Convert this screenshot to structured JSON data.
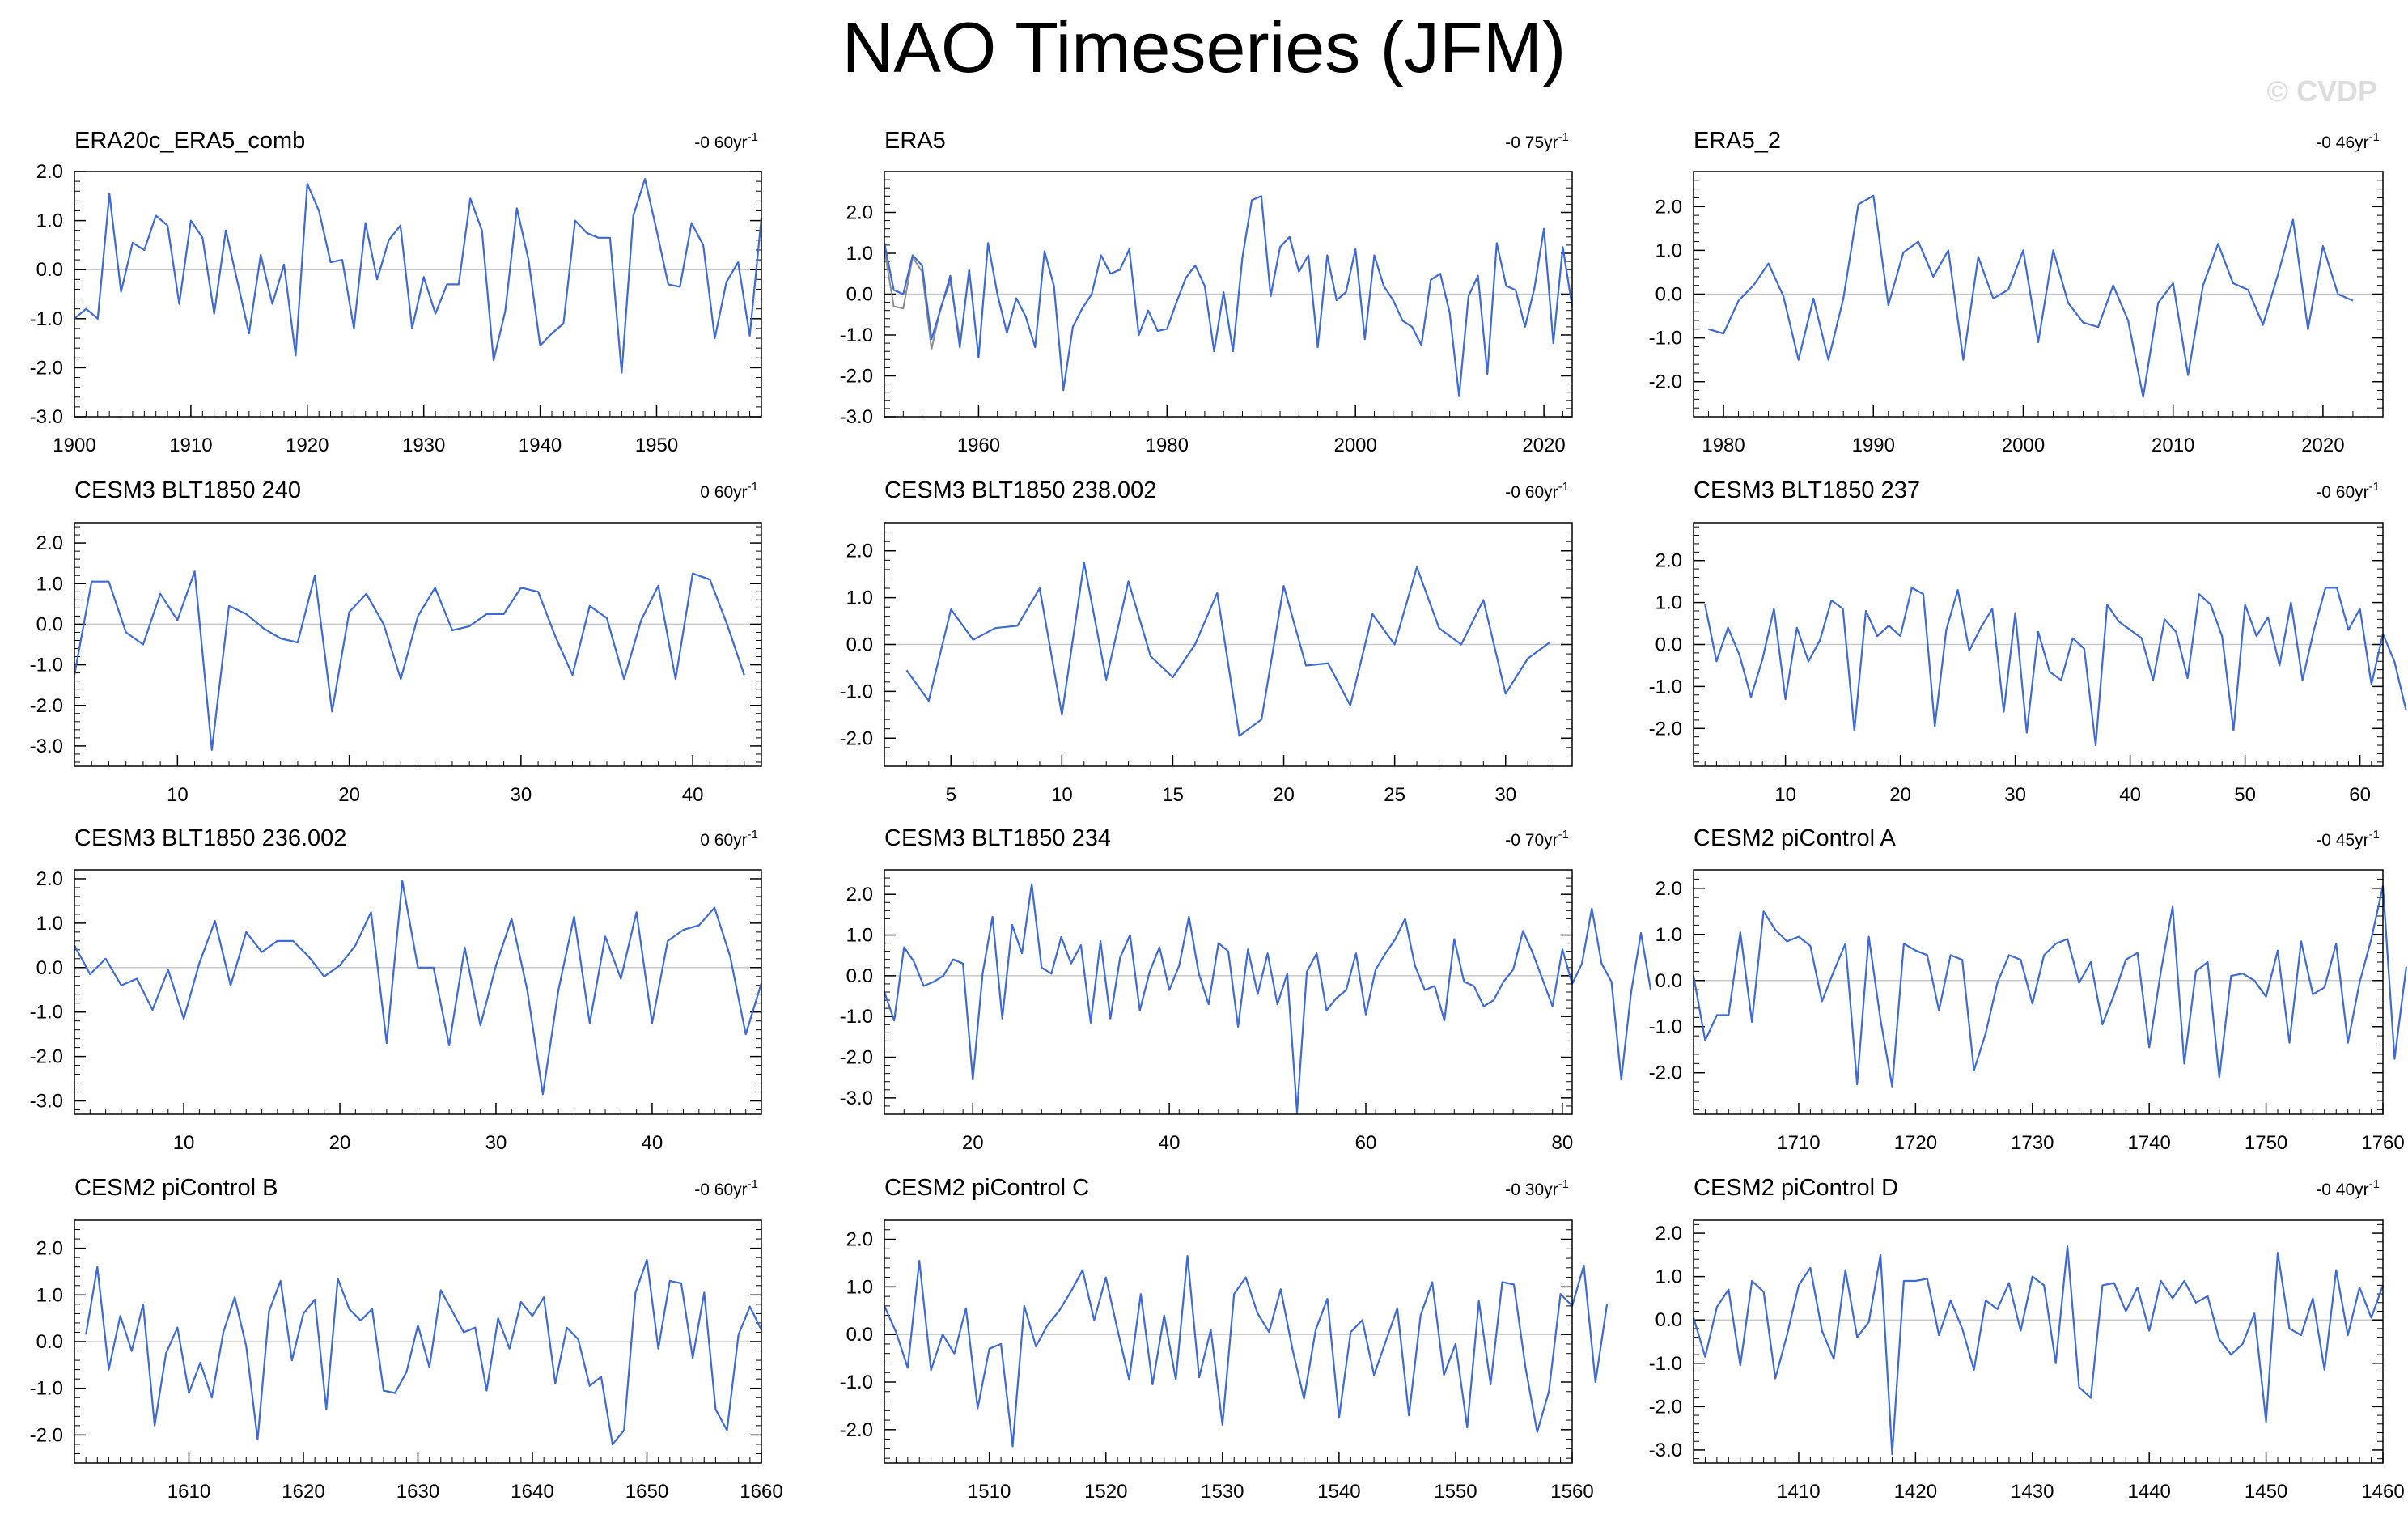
{
  "title": "NAO Timeseries (JFM)",
  "watermark": "© CVDP",
  "chart_data": [
    {
      "type": "line",
      "title": "ERA20c_ERA5_comb",
      "trend": "-0 60yr",
      "trend_sup": "-1",
      "x_start": 1900,
      "xlim": [
        1900,
        1959
      ],
      "ylim": [
        -3.0,
        2.0
      ],
      "yticks": [
        2.0,
        1.0,
        0.0,
        -1.0,
        -2.0,
        -3.0
      ],
      "xticks": [
        1900,
        1910,
        1920,
        1930,
        1940,
        1950
      ],
      "values": [
        -1.0,
        -0.8,
        -1.0,
        1.55,
        -0.45,
        0.55,
        0.4,
        1.1,
        0.9,
        -0.7,
        1.0,
        0.65,
        -0.9,
        0.8,
        -0.25,
        -1.3,
        0.3,
        -0.7,
        0.1,
        -1.75,
        1.75,
        1.2,
        0.15,
        0.2,
        -1.2,
        0.95,
        -0.2,
        0.6,
        0.9,
        -1.2,
        -0.15,
        -0.9,
        -0.3,
        -0.3,
        1.45,
        0.8,
        -1.85,
        -0.85,
        1.25,
        0.2,
        -1.55,
        -1.3,
        -1.1,
        1.0,
        0.75,
        0.65,
        0.65,
        -2.1,
        1.1,
        1.85,
        0.8,
        -0.3,
        -0.35,
        0.95,
        0.5,
        -1.4,
        -0.25,
        0.15,
        -1.35,
        1.05
      ]
    },
    {
      "type": "line",
      "title": "ERA5",
      "trend": "-0 75yr",
      "trend_sup": "-1",
      "x_start": 1950,
      "xlim": [
        1950,
        2023
      ],
      "ylim": [
        -3.0,
        3.0
      ],
      "yticks": [
        2.0,
        1.0,
        0.0,
        -1.0,
        -2.0,
        -3.0
      ],
      "xticks": [
        1960,
        1980,
        2000,
        2020
      ],
      "values": [
        1.25,
        0.1,
        0.0,
        0.95,
        0.7,
        -1.1,
        -0.35,
        0.45,
        -1.3,
        0.6,
        -1.55,
        1.25,
        0.0,
        -0.95,
        -0.1,
        -0.55,
        -1.3,
        1.05,
        0.2,
        -2.35,
        -0.8,
        -0.35,
        0.0,
        0.95,
        0.5,
        0.6,
        1.1,
        -1.0,
        -0.4,
        -0.9,
        -0.85,
        -0.2,
        0.4,
        0.7,
        0.2,
        -1.4,
        0.05,
        -1.4,
        0.9,
        2.3,
        2.4,
        -0.05,
        1.15,
        1.4,
        0.55,
        0.95,
        -1.3,
        0.95,
        -0.15,
        0.05,
        1.1,
        -1.1,
        0.95,
        0.2,
        -0.15,
        -0.65,
        -0.8,
        -1.25,
        0.35,
        0.5,
        -0.45,
        -2.5,
        -0.05,
        0.45,
        -1.95,
        1.25,
        0.2,
        0.1,
        -0.8,
        0.15,
        1.6,
        -1.2,
        1.15,
        -0.3
      ],
      "grey": [
        1.1,
        -0.3,
        -0.35,
        0.9,
        0.55,
        -1.35,
        -0.3,
        0.3,
        -1.1
      ]
    },
    {
      "type": "line",
      "title": "ERA5_2",
      "trend": "-0 46yr",
      "trend_sup": "-1",
      "x_start": 1979,
      "xlim": [
        1978,
        2024
      ],
      "ylim": [
        -2.8,
        2.8
      ],
      "yticks": [
        2.0,
        1.0,
        0.0,
        -1.0,
        -2.0
      ],
      "xticks": [
        1980,
        1990,
        2000,
        2010,
        2020
      ],
      "values": [
        -0.8,
        -0.9,
        -0.15,
        0.2,
        0.7,
        -0.05,
        -1.5,
        -0.1,
        -1.5,
        -0.1,
        2.05,
        2.25,
        -0.25,
        0.95,
        1.2,
        0.4,
        1.0,
        -1.5,
        0.85,
        -0.1,
        0.1,
        1.0,
        -1.1,
        1.0,
        -0.2,
        -0.65,
        -0.75,
        0.2,
        -0.6,
        -2.35,
        -0.2,
        0.25,
        -1.85,
        0.2,
        1.15,
        0.25,
        0.1,
        -0.7,
        0.45,
        1.7,
        -0.8,
        1.1,
        0.0,
        -0.15
      ]
    },
    {
      "type": "line",
      "title": "CESM3 BLT1850 240",
      "trend": "0 60yr",
      "trend_sup": "-1",
      "x_start": 4,
      "xlim": [
        4,
        44
      ],
      "ylim": [
        -3.5,
        2.5
      ],
      "yticks": [
        2.0,
        1.0,
        0.0,
        -1.0,
        -2.0,
        -3.0
      ],
      "xticks": [
        10,
        20,
        30,
        40
      ],
      "values": [
        -1.25,
        1.05,
        1.05,
        -0.2,
        -0.5,
        0.75,
        0.1,
        1.3,
        -3.1,
        0.45,
        0.25,
        -0.1,
        -0.35,
        -0.45,
        1.2,
        -2.15,
        0.3,
        0.75,
        0.0,
        -1.35,
        0.2,
        0.9,
        -0.15,
        -0.05,
        0.25,
        0.25,
        0.9,
        0.8,
        -0.3,
        -1.25,
        0.45,
        0.15,
        -1.35,
        0.1,
        0.95,
        -1.35,
        1.25,
        1.1,
        0.0,
        -1.25
      ]
    },
    {
      "type": "line",
      "title": "CESM3 BLT1850 238.002",
      "trend": "-0 60yr",
      "trend_sup": "-1",
      "x_start": 3,
      "xlim": [
        2,
        33
      ],
      "ylim": [
        -2.6,
        2.6
      ],
      "yticks": [
        2.0,
        1.0,
        0.0,
        -1.0,
        -2.0
      ],
      "xticks": [
        5,
        10,
        15,
        20,
        25,
        30
      ],
      "values": [
        -0.55,
        -1.2,
        0.75,
        0.1,
        0.35,
        0.4,
        1.2,
        -1.5,
        1.75,
        -0.75,
        1.35,
        -0.25,
        -0.7,
        0.0,
        1.1,
        -1.95,
        -1.6,
        1.25,
        -0.45,
        -0.4,
        -1.3,
        0.65,
        0.0,
        1.65,
        0.35,
        0.0,
        0.95,
        -1.05,
        -0.3,
        0.05
      ]
    },
    {
      "type": "line",
      "title": "CESM3 BLT1850 237",
      "trend": "-0 60yr",
      "trend_sup": "-1",
      "x_start": 3,
      "xlim": [
        2,
        62
      ],
      "ylim": [
        -2.9,
        2.9
      ],
      "yticks": [
        2.0,
        1.0,
        0.0,
        -1.0,
        -2.0
      ],
      "xticks": [
        10,
        20,
        30,
        40,
        50,
        60
      ],
      "values": [
        0.95,
        -0.4,
        0.4,
        -0.25,
        -1.25,
        -0.35,
        0.85,
        -1.3,
        0.4,
        -0.4,
        0.1,
        1.05,
        0.85,
        -2.05,
        0.8,
        0.2,
        0.45,
        0.2,
        1.35,
        1.2,
        -1.95,
        0.35,
        1.3,
        -0.15,
        0.4,
        0.85,
        -1.6,
        0.75,
        -2.1,
        0.3,
        -0.65,
        -0.85,
        0.15,
        -0.1,
        -2.4,
        0.95,
        0.55,
        0.35,
        0.15,
        -0.85,
        0.6,
        0.3,
        -0.8,
        1.2,
        0.95,
        0.2,
        -2.05,
        0.95,
        0.2,
        0.65,
        -0.5,
        1.0,
        -0.85,
        0.35,
        1.35,
        1.35,
        0.35,
        0.85,
        -0.95,
        0.25,
        -0.4,
        -1.55
      ]
    },
    {
      "type": "line",
      "title": "CESM3 BLT1850 236.002",
      "trend": "0 60yr",
      "trend_sup": "-1",
      "x_start": 3,
      "xlim": [
        3,
        47
      ],
      "ylim": [
        -3.3,
        2.2
      ],
      "yticks": [
        2.0,
        1.0,
        0.0,
        -1.0,
        -2.0,
        -3.0
      ],
      "xticks": [
        10,
        20,
        30,
        40
      ],
      "values": [
        0.5,
        -0.15,
        0.2,
        -0.4,
        -0.25,
        -0.95,
        -0.05,
        -1.15,
        0.1,
        1.05,
        -0.4,
        0.8,
        0.35,
        0.6,
        0.6,
        0.25,
        -0.2,
        0.05,
        0.5,
        1.25,
        -1.7,
        1.95,
        0.0,
        0.0,
        -1.75,
        0.45,
        -1.3,
        0.05,
        1.1,
        -0.5,
        -2.85,
        -0.5,
        1.15,
        -1.25,
        0.7,
        -0.25,
        1.25,
        -1.25,
        0.6,
        0.85,
        0.95,
        1.35,
        0.25,
        -1.5,
        -0.35
      ]
    },
    {
      "type": "line",
      "title": "CESM3 BLT1850 234",
      "trend": "-0 70yr",
      "trend_sup": "-1",
      "x_start": 11,
      "xlim": [
        11,
        81
      ],
      "ylim": [
        -3.4,
        2.6
      ],
      "yticks": [
        2.0,
        1.0,
        0.0,
        -1.0,
        -2.0,
        -3.0
      ],
      "xticks": [
        20,
        40,
        60,
        80
      ],
      "values": [
        -0.4,
        -1.1,
        0.7,
        0.35,
        -0.25,
        -0.15,
        0.0,
        0.4,
        0.3,
        -2.55,
        0.05,
        1.45,
        -1.05,
        1.25,
        0.55,
        2.25,
        0.2,
        0.05,
        0.95,
        0.3,
        0.75,
        -1.15,
        0.85,
        -1.05,
        0.45,
        1.0,
        -0.85,
        0.1,
        0.7,
        -0.35,
        0.25,
        1.45,
        0.05,
        -0.7,
        0.8,
        0.6,
        -1.25,
        0.65,
        -0.45,
        0.55,
        -0.7,
        0.05,
        -3.35,
        0.1,
        0.55,
        -0.85,
        -0.55,
        -0.35,
        0.55,
        -0.95,
        0.15,
        0.55,
        0.9,
        1.4,
        0.25,
        -0.35,
        -0.25,
        -1.1,
        0.9,
        -0.15,
        -0.25,
        -0.75,
        -0.6,
        -0.15,
        0.15,
        1.1,
        0.55,
        -0.1,
        -0.75,
        0.65,
        -0.2,
        0.3,
        1.65,
        0.3,
        -0.15,
        -2.55,
        -0.4,
        1.05,
        -0.35
      ]
    },
    {
      "type": "line",
      "title": "CESM2 piControl A",
      "trend": "-0 45yr",
      "trend_sup": "-1",
      "x_start": 1701,
      "xlim": [
        1701,
        1760
      ],
      "ylim": [
        -2.9,
        2.4
      ],
      "yticks": [
        2.0,
        1.0,
        0.0,
        -1.0,
        -2.0
      ],
      "xticks": [
        1710,
        1720,
        1730,
        1740,
        1750,
        1760
      ],
      "values": [
        0.1,
        -1.3,
        -0.75,
        -0.75,
        1.05,
        -0.9,
        1.5,
        1.1,
        0.85,
        0.95,
        0.75,
        -0.45,
        0.2,
        0.8,
        -2.25,
        0.95,
        -0.85,
        -2.3,
        0.8,
        0.65,
        0.55,
        -0.65,
        0.55,
        0.45,
        -1.95,
        -1.15,
        -0.05,
        0.55,
        0.45,
        -0.5,
        0.55,
        0.8,
        0.9,
        -0.05,
        0.4,
        -0.95,
        -0.3,
        0.45,
        0.6,
        -1.45,
        0.2,
        1.6,
        -1.8,
        0.2,
        0.4,
        -2.1,
        0.1,
        0.15,
        0.0,
        -0.35,
        0.65,
        -1.35,
        0.85,
        -0.3,
        -0.15,
        0.8,
        -1.35,
        -0.05,
        0.9,
        2.05,
        -1.7,
        0.3
      ]
    },
    {
      "type": "line",
      "title": "CESM2 piControl B",
      "trend": "-0 60yr",
      "trend_sup": "-1",
      "x_start": 1601,
      "xlim": [
        1600,
        1660
      ],
      "ylim": [
        -2.6,
        2.6
      ],
      "yticks": [
        2.0,
        1.0,
        0.0,
        -1.0,
        -2.0
      ],
      "xticks": [
        1610,
        1620,
        1630,
        1640,
        1650,
        1660
      ],
      "values": [
        0.15,
        1.6,
        -0.6,
        0.55,
        -0.2,
        0.8,
        -1.8,
        -0.25,
        0.3,
        -1.1,
        -0.45,
        -1.2,
        0.2,
        0.95,
        -0.1,
        -2.1,
        0.65,
        1.3,
        -0.4,
        0.6,
        0.9,
        -1.45,
        1.35,
        0.7,
        0.45,
        0.7,
        -1.05,
        -1.1,
        -0.65,
        0.35,
        -0.55,
        1.1,
        0.65,
        0.2,
        0.3,
        -1.05,
        0.5,
        -0.15,
        0.85,
        0.55,
        0.95,
        -0.9,
        0.3,
        0.05,
        -0.95,
        -0.75,
        -2.2,
        -1.9,
        1.05,
        1.75,
        -0.15,
        1.3,
        1.25,
        -0.35,
        1.05,
        -1.45,
        -1.9,
        0.15,
        0.75,
        0.25
      ]
    },
    {
      "type": "line",
      "title": "CESM2 piControl C",
      "trend": "-0 30yr",
      "trend_sup": "-1",
      "x_start": 1501,
      "xlim": [
        1501,
        1560
      ],
      "ylim": [
        -2.7,
        2.4
      ],
      "yticks": [
        2.0,
        1.0,
        0.0,
        -1.0,
        -2.0
      ],
      "xticks": [
        1510,
        1520,
        1530,
        1540,
        1550,
        1560
      ],
      "values": [
        0.6,
        0.05,
        -0.7,
        1.55,
        -0.75,
        0.0,
        -0.4,
        0.55,
        -1.55,
        -0.3,
        -0.2,
        -2.35,
        0.6,
        -0.25,
        0.2,
        0.5,
        0.9,
        1.35,
        0.3,
        1.2,
        0.1,
        -0.95,
        0.85,
        -1.05,
        0.4,
        -0.95,
        1.65,
        -0.9,
        0.1,
        -1.9,
        0.85,
        1.2,
        0.45,
        0.05,
        0.95,
        -0.3,
        -1.35,
        0.1,
        0.75,
        -1.75,
        0.05,
        0.3,
        -0.85,
        -0.15,
        0.55,
        -1.7,
        0.4,
        1.1,
        -0.85,
        -0.2,
        -1.95,
        0.7,
        -1.05,
        1.1,
        1.05,
        -0.7,
        -2.05,
        -1.2,
        0.85,
        0.6,
        1.45,
        -1.0,
        0.65
      ]
    },
    {
      "type": "line",
      "title": "CESM2 piControl D",
      "trend": "-0 40yr",
      "trend_sup": "-1",
      "x_start": 1401,
      "xlim": [
        1401,
        1460
      ],
      "ylim": [
        -3.3,
        2.3
      ],
      "yticks": [
        2.0,
        1.0,
        0.0,
        -1.0,
        -2.0,
        -3.0
      ],
      "xticks": [
        1410,
        1420,
        1430,
        1440,
        1450,
        1460
      ],
      "values": [
        0.05,
        -0.85,
        0.3,
        0.7,
        -1.05,
        0.9,
        0.65,
        -1.35,
        -0.35,
        0.8,
        1.2,
        -0.25,
        -0.9,
        1.15,
        -0.4,
        -0.05,
        1.5,
        -3.1,
        0.9,
        0.9,
        0.95,
        -0.35,
        0.45,
        -0.2,
        -1.15,
        0.45,
        0.25,
        0.85,
        -0.25,
        1.0,
        0.8,
        -1.0,
        1.7,
        -1.55,
        -1.8,
        0.8,
        0.85,
        0.2,
        0.75,
        -0.25,
        0.9,
        0.5,
        0.9,
        0.4,
        0.55,
        -0.45,
        -0.8,
        -0.55,
        0.15,
        -2.35,
        1.55,
        -0.2,
        -0.35,
        0.5,
        -1.15,
        1.15,
        -0.35,
        0.75,
        0.05,
        0.8
      ]
    }
  ]
}
